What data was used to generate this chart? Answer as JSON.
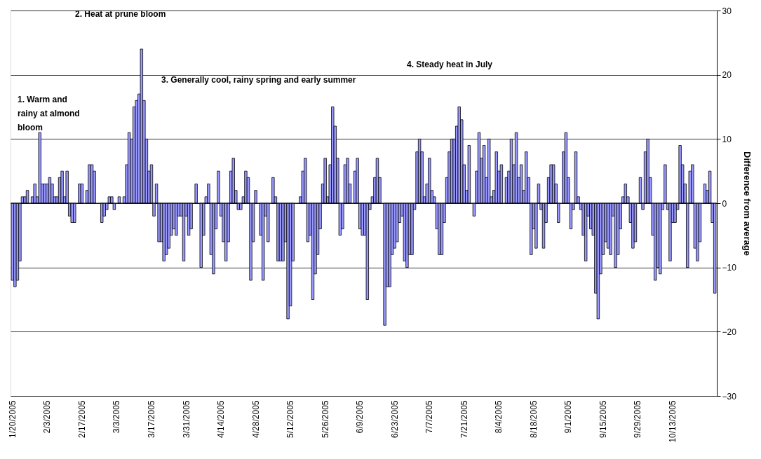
{
  "chart_data": {
    "type": "bar",
    "ylabel": "Difference from average",
    "ylim": [
      -30,
      30
    ],
    "yticks": [
      -30,
      -20,
      -10,
      0,
      10,
      20,
      30
    ],
    "grid": "y",
    "annotations": [
      "1. Warm and rainy at almond bloom",
      "2.  Heat at prune bloom",
      "3.  Generally cool, rainy spring and early summer",
      "4.  Steady heat in July"
    ],
    "categories": [
      "1/20/2005",
      null,
      null,
      null,
      null,
      null,
      null,
      null,
      null,
      null,
      null,
      null,
      null,
      null,
      "2/3/2005",
      null,
      null,
      null,
      null,
      null,
      null,
      null,
      null,
      null,
      null,
      null,
      null,
      null,
      "2/17/2005",
      null,
      null,
      null,
      null,
      null,
      null,
      null,
      null,
      null,
      null,
      null,
      null,
      null,
      "3/3/2005",
      null,
      null,
      null,
      null,
      null,
      null,
      null,
      null,
      null,
      null,
      null,
      null,
      null,
      "3/17/2005",
      null,
      null,
      null,
      null,
      null,
      null,
      null,
      null,
      null,
      null,
      null,
      null,
      null,
      "3/31/2005",
      null,
      null,
      null,
      null,
      null,
      null,
      null,
      null,
      null,
      null,
      null,
      null,
      null,
      "4/14/2005",
      null,
      null,
      null,
      null,
      null,
      null,
      null,
      null,
      null,
      null,
      null,
      null,
      null,
      "4/28/2005",
      null,
      null,
      null,
      null,
      null,
      null,
      null,
      null,
      null,
      null,
      null,
      null,
      null,
      "5/12/2005",
      null,
      null,
      null,
      null,
      null,
      null,
      null,
      null,
      null,
      null,
      null,
      null,
      null,
      "5/26/2005",
      null,
      null,
      null,
      null,
      null,
      null,
      null,
      null,
      null,
      null,
      null,
      null,
      null,
      "6/9/2005",
      null,
      null,
      null,
      null,
      null,
      null,
      null,
      null,
      null,
      null,
      null,
      null,
      null,
      "6/23/2005",
      null,
      null,
      null,
      null,
      null,
      null,
      null,
      null,
      null,
      null,
      null,
      null,
      null,
      "7/7/2005",
      null,
      null,
      null,
      null,
      null,
      null,
      null,
      null,
      null,
      null,
      null,
      null,
      null,
      "7/21/2005",
      null,
      null,
      null,
      null,
      null,
      null,
      null,
      null,
      null,
      null,
      null,
      null,
      null,
      "8/4/2005",
      null,
      null,
      null,
      null,
      null,
      null,
      null,
      null,
      null,
      null,
      null,
      null,
      null,
      "8/18/2005",
      null,
      null,
      null,
      null,
      null,
      null,
      null,
      null,
      null,
      null,
      null,
      null,
      null,
      "9/1/2005",
      null,
      null,
      null,
      null,
      null,
      null,
      null,
      null,
      null,
      null,
      null,
      null,
      null,
      "9/15/2005",
      null,
      null,
      null,
      null,
      null,
      null,
      null,
      null,
      null,
      null,
      null,
      null,
      null,
      "9/29/2005",
      null,
      null,
      null,
      null,
      null,
      null,
      null,
      null,
      null,
      null,
      null,
      null,
      null,
      "10/13/2005",
      null,
      null,
      null,
      null,
      null,
      null,
      null,
      null,
      null,
      null,
      null,
      null,
      null,
      null,
      null,
      null,
      null
    ],
    "series": [
      {
        "color": "#9999ff",
        "values": [
          -12,
          -13,
          -12,
          -9,
          1,
          1,
          2,
          0,
          1,
          3,
          1,
          11,
          3,
          3,
          3,
          4,
          3,
          1,
          1,
          4,
          5,
          1,
          5,
          -2,
          -3,
          -3,
          0,
          3,
          3,
          0,
          2,
          6,
          6,
          5,
          0,
          0,
          -3,
          -2,
          -1,
          1,
          1,
          -1,
          0,
          1,
          0,
          1,
          6,
          11,
          10,
          15,
          16,
          17,
          24,
          16,
          10,
          5,
          6,
          -2,
          3,
          -6,
          -6,
          -9,
          -8,
          -7,
          -5,
          -4,
          -5,
          -2,
          -2,
          -9,
          -2,
          -5,
          -4,
          0,
          3,
          0,
          -10,
          -5,
          1,
          3,
          -8,
          -11,
          -4,
          5,
          -2,
          -6,
          -9,
          -6,
          5,
          7,
          2,
          -1,
          -1,
          1,
          5,
          4,
          -12,
          -6,
          2,
          0,
          -5,
          -12,
          -2,
          -6,
          0,
          4,
          1,
          -9,
          -9,
          -9,
          -6,
          -18,
          -16,
          -9,
          0,
          0,
          1,
          5,
          7,
          -6,
          -5,
          -15,
          -11,
          -8,
          -4,
          3,
          7,
          1,
          6,
          15,
          12,
          7,
          -5,
          -4,
          6,
          7,
          3,
          0,
          5,
          7,
          -4,
          -5,
          -5,
          -15,
          -1,
          1,
          4,
          7,
          4,
          0,
          -19,
          -13,
          -13,
          -8,
          -7,
          -6,
          -3,
          -2,
          -9,
          -10,
          -8,
          -8,
          -1,
          8,
          10,
          8,
          1,
          3,
          7,
          2,
          1,
          -4,
          -8,
          -8,
          -3,
          4,
          8,
          10,
          10,
          12,
          15,
          13,
          6,
          2,
          9,
          0,
          -2,
          5,
          11,
          7,
          9,
          4,
          10,
          1,
          2,
          8,
          5,
          6,
          0,
          4,
          5,
          10,
          6,
          11,
          4,
          6,
          2,
          8,
          4,
          -8,
          -4,
          -7,
          3,
          -1,
          -7,
          -3,
          4,
          6,
          6,
          3,
          -3,
          0,
          8,
          11,
          4,
          -4,
          -1,
          8,
          1,
          -1,
          -5,
          -9,
          -2,
          -4,
          -5,
          -14,
          -18,
          -11,
          -8,
          -6,
          -7,
          -8,
          -2,
          -10,
          -8,
          -4,
          1,
          3,
          1,
          -3,
          -7,
          -6,
          0,
          4,
          -1,
          8,
          10,
          4,
          -5,
          -12,
          -10,
          -11,
          -1,
          6,
          -1,
          -9,
          -3,
          -3,
          -1,
          9,
          6,
          3,
          -10,
          5,
          6,
          -7,
          -9,
          -6,
          0,
          3,
          2,
          5,
          -3,
          -14
        ]
      }
    ]
  }
}
